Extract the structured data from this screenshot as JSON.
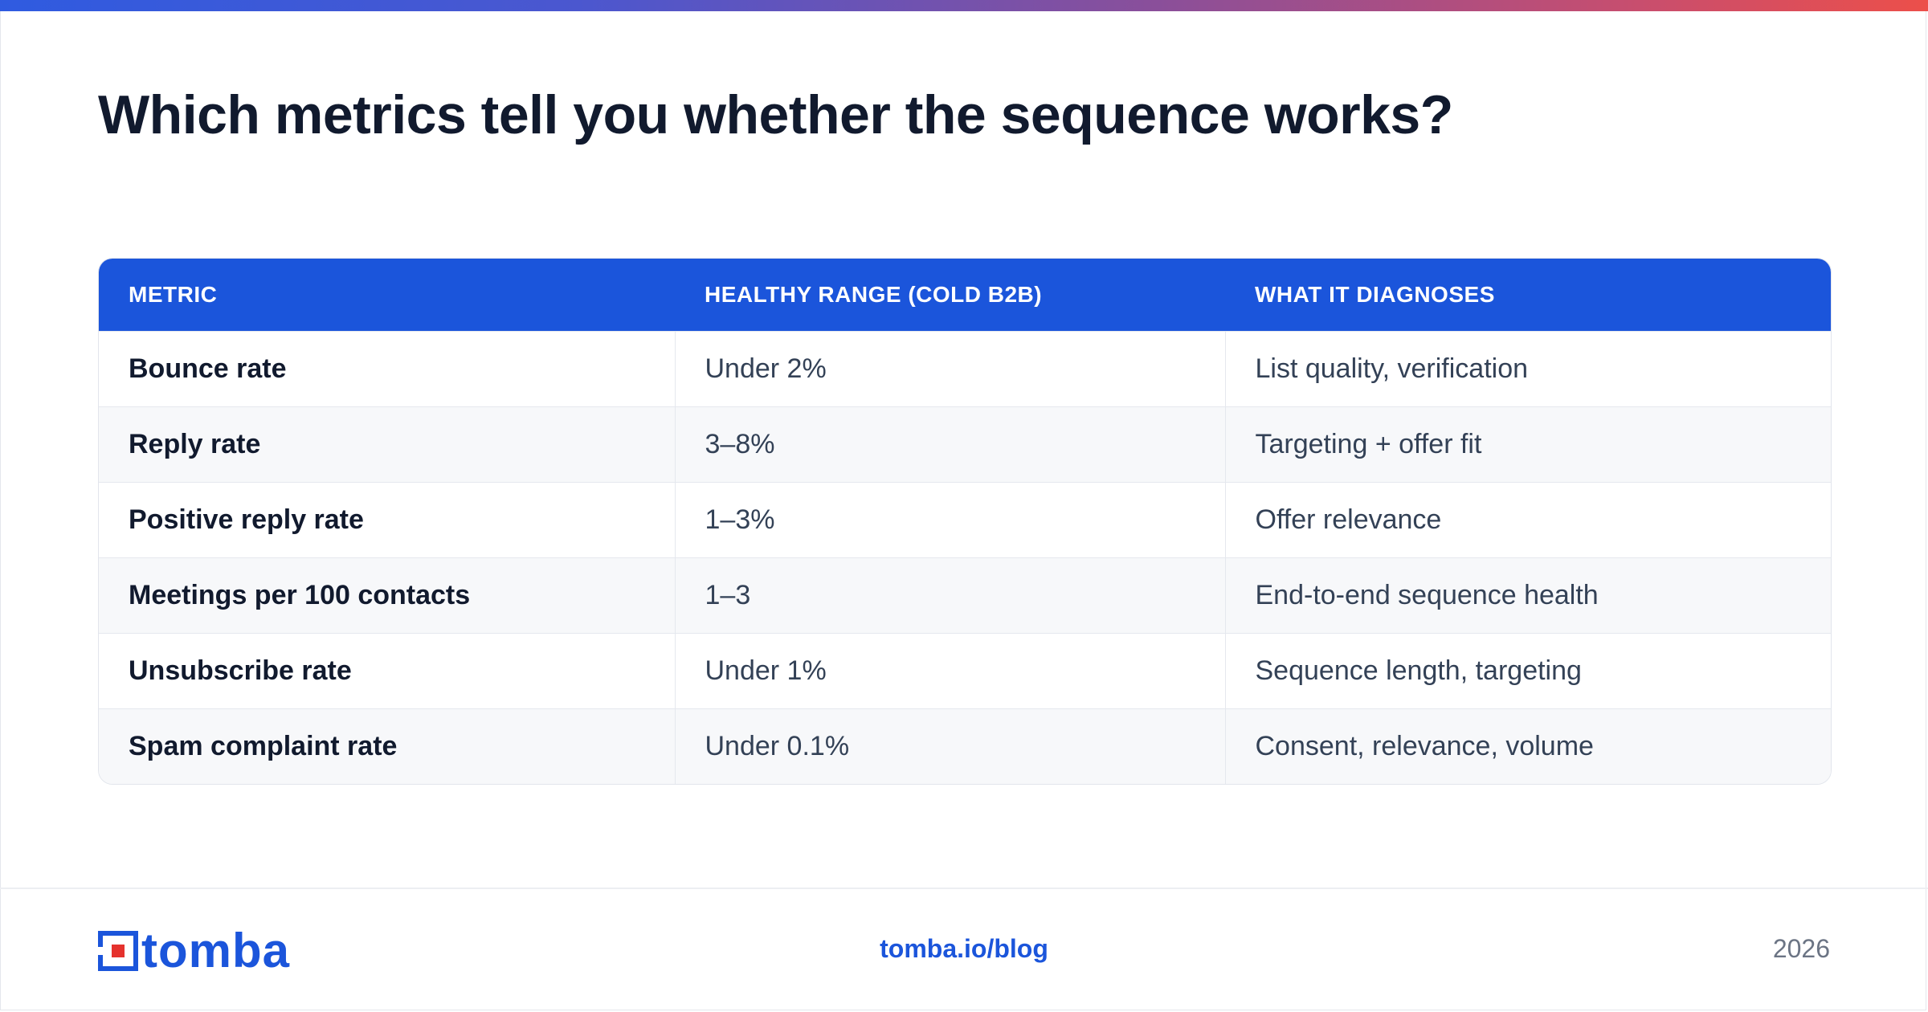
{
  "headline": "Which metrics tell you whether the sequence works?",
  "table": {
    "headers": [
      "METRIC",
      "HEALTHY RANGE (COLD B2B)",
      "WHAT IT DIAGNOSES"
    ],
    "rows": [
      [
        "Bounce rate",
        "Under 2%",
        "List quality, verification"
      ],
      [
        "Reply rate",
        "3–8%",
        "Targeting + offer fit"
      ],
      [
        "Positive reply rate",
        "1–3%",
        "Offer relevance"
      ],
      [
        "Meetings per 100 contacts",
        "1–3",
        "End-to-end sequence health"
      ],
      [
        "Unsubscribe rate",
        "Under 1%",
        "Sequence length, targeting"
      ],
      [
        "Spam complaint rate",
        "Under 0.1%",
        "Consent, relevance, volume"
      ]
    ]
  },
  "footer": {
    "logo_text": "tomba",
    "link": "tomba.io/blog",
    "year": "2026"
  },
  "colors": {
    "accent": "#1b55db",
    "logo_red": "#e5322d",
    "heading": "#111a2e",
    "gradient_start": "#2f5be0",
    "gradient_end": "#ec4f4a"
  }
}
